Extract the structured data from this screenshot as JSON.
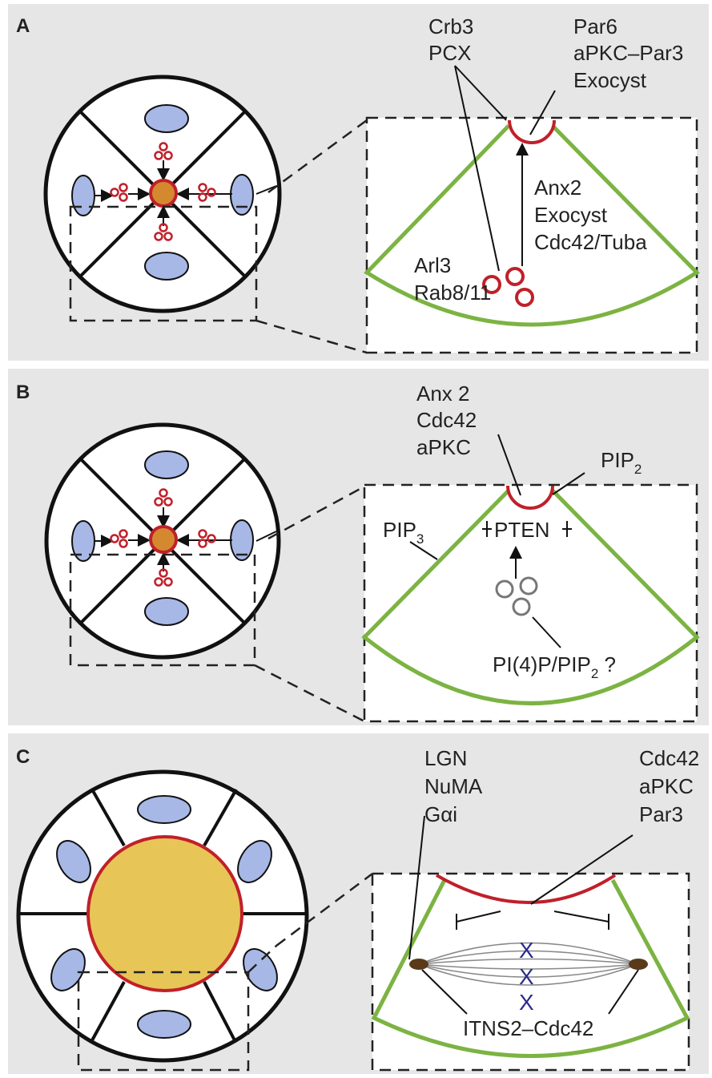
{
  "panels": [
    {
      "label": "A",
      "texts": [
        "Crb3",
        "PCX",
        "Par6",
        "aPKC–Par3",
        "Exocyst",
        "Anx2",
        "Exocyst",
        "Cdc42/Tuba",
        "Arl3",
        "Rab8/11"
      ]
    },
    {
      "label": "B",
      "texts": [
        "Anx 2",
        "Cdc42",
        "aPKC",
        "PTEN"
      ],
      "pip2": {
        "text": "PIP",
        "sub": "2"
      },
      "pip3": {
        "text": "PIP",
        "sub": "3"
      },
      "pi4p": {
        "text": "PI(4)P/PIP",
        "sub": "2",
        "suffix": " ?"
      }
    },
    {
      "label": "C",
      "texts": [
        "LGN",
        "NuMA",
        "Gαi",
        "Cdc42",
        "aPKC",
        "Par3",
        "X",
        "X",
        "X",
        "ITNS2–Cdc42"
      ]
    }
  ]
}
